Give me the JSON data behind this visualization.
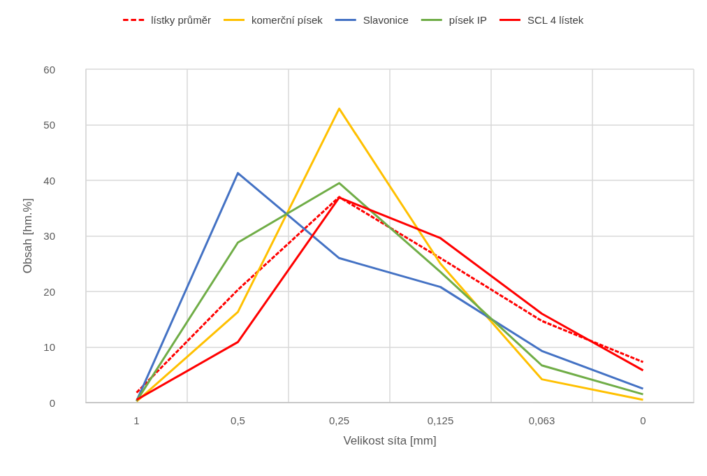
{
  "chart_data": {
    "type": "line",
    "xlabel": "Velikost síta [mm]",
    "ylabel": "Obsah [hm.%]",
    "categories": [
      "1",
      "0,5",
      "0,25",
      "0,125",
      "0,063",
      "0"
    ],
    "series": [
      {
        "name": "lístky průměr",
        "color": "#ff0000",
        "line_style": "dashed",
        "values": [
          1.8,
          20.3,
          37,
          26,
          14.7,
          7.3
        ]
      },
      {
        "name": "komerční písek",
        "color": "#ffc000",
        "values": [
          0.2,
          16.3,
          52.9,
          25,
          4.2,
          0.5
        ]
      },
      {
        "name": "Slavonice",
        "color": "#4472c4",
        "values": [
          0.3,
          41.3,
          26,
          20.8,
          9.3,
          2.5
        ]
      },
      {
        "name": "písek IP",
        "color": "#70ad47",
        "values": [
          0.3,
          28.8,
          39.5,
          23.5,
          6.7,
          1.5
        ]
      },
      {
        "name": "SCL 4 lístek",
        "color": "#ff0000",
        "values": [
          0.5,
          10.9,
          36.9,
          29.6,
          16,
          5.8
        ]
      }
    ],
    "ylim": [
      0,
      60
    ],
    "yticks": [
      0,
      10,
      20,
      30,
      40,
      50,
      60
    ],
    "grid": true,
    "legend": "top",
    "marker": "none",
    "line_style": "solid"
  }
}
